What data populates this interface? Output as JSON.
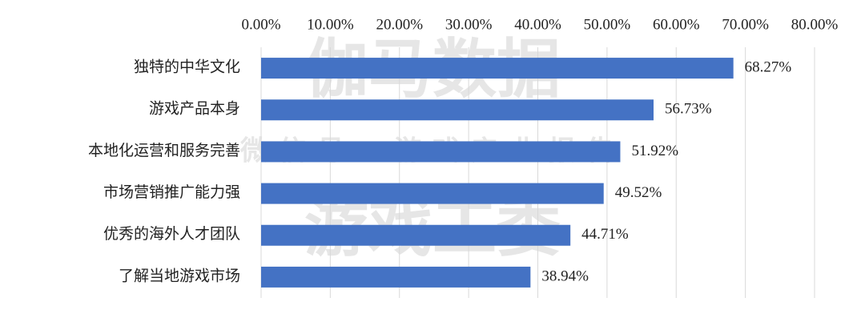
{
  "chart_data": {
    "type": "hbar",
    "categories": [
      "独特的中华文化",
      "游戏产品本身",
      "本地化运营和服务完善",
      "市场营销推广能力强",
      "优秀的海外人才团队",
      "了解当地游戏市场"
    ],
    "values": [
      68.27,
      56.73,
      51.92,
      49.52,
      44.71,
      38.94
    ],
    "value_labels": [
      "68.27%",
      "56.73%",
      "51.92%",
      "49.52%",
      "44.71%",
      "38.94%"
    ],
    "color": "#4472c4",
    "xlim": [
      0,
      80
    ],
    "xticks": [
      {
        "value": 0,
        "label": "0.00%"
      },
      {
        "value": 10,
        "label": "10.00%"
      },
      {
        "value": 20,
        "label": "20.00%"
      },
      {
        "value": 30,
        "label": "30.00%"
      },
      {
        "value": 40,
        "label": "40.00%"
      },
      {
        "value": 50,
        "label": "50.00%"
      },
      {
        "value": 60,
        "label": "60.00%"
      },
      {
        "value": 70,
        "label": "70.00%"
      },
      {
        "value": 80,
        "label": "80.00%"
      }
    ],
    "grid": true,
    "watermarks": [
      "伽马数据",
      "微信号：游戏产业报告",
      "游戏工委"
    ]
  }
}
